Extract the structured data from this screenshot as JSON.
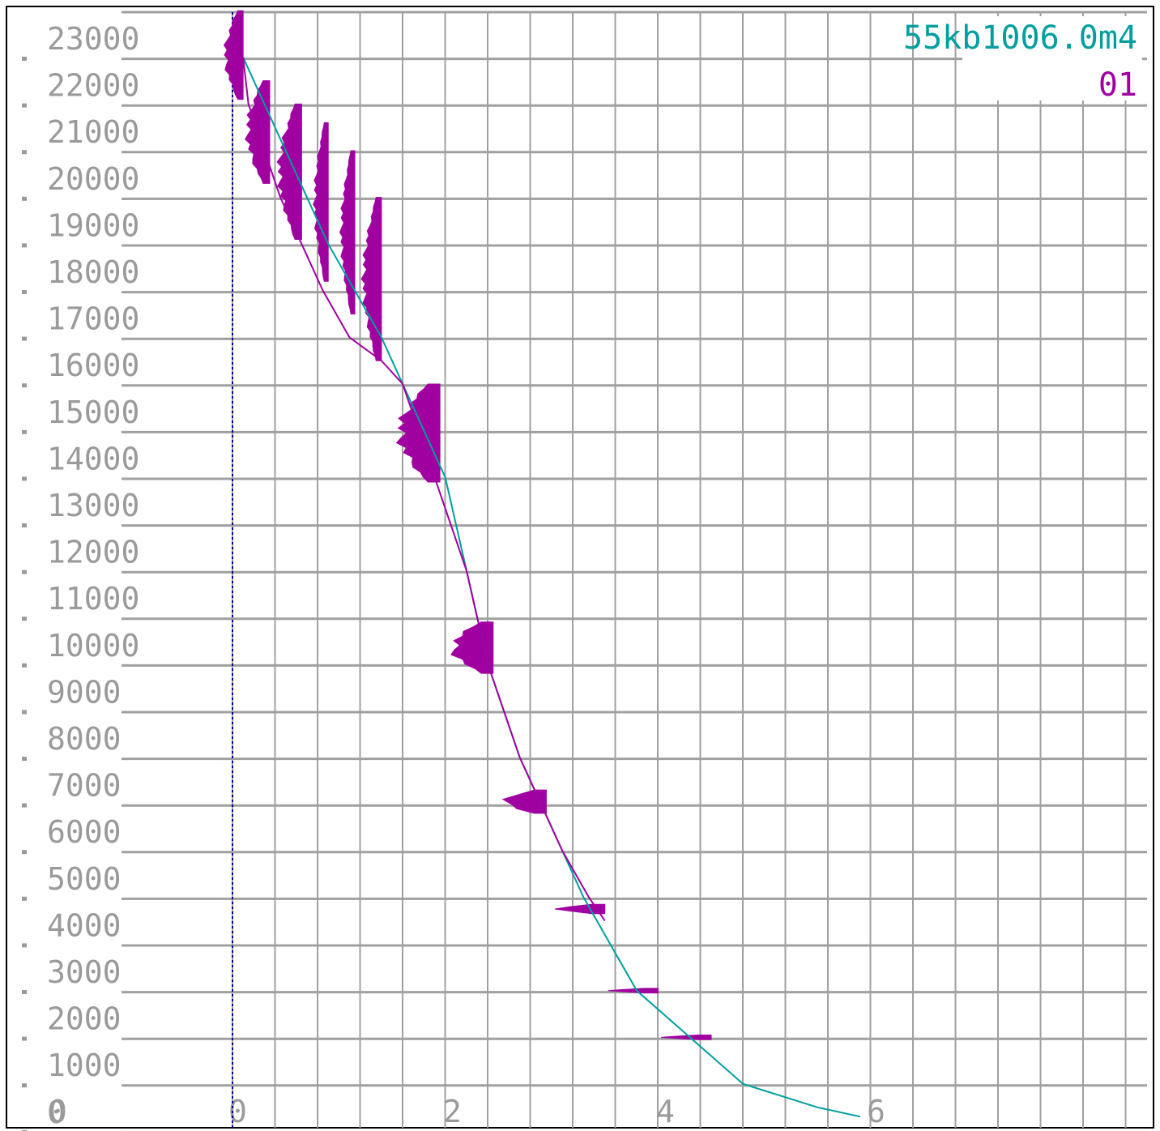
{
  "chart_data": {
    "type": "line",
    "title": "",
    "xlabel": "",
    "ylabel": "",
    "grid": true,
    "legend_position": "top-right",
    "y_ticks": [
      "23000",
      "22000",
      "21000",
      "20000",
      "19000",
      "18000",
      "17000",
      "16000",
      "15000",
      "14000",
      "13000",
      "12000",
      "11000",
      "10000",
      "9000",
      "8000",
      "7000",
      "6000",
      "5000",
      "4000",
      "3000",
      "2000",
      "1000",
      "0"
    ],
    "x_ticks": [
      "0",
      "2",
      "4",
      "6"
    ],
    "ylim": [
      0,
      23000
    ],
    "xlim": [
      0,
      8.5
    ],
    "legend": [
      {
        "label": "55kb1006.0m4",
        "color": "#009e9e"
      },
      {
        "label": "01",
        "color": "#a000a0"
      }
    ],
    "colors": {
      "grid": "#a0a0a0",
      "axis_labels": "#9a9a9a",
      "zero_line": "#00008b",
      "model": "#009e9e",
      "data": "#a000a0"
    },
    "series": [
      {
        "name": "55kb1006.0m4",
        "kind": "fit-curve",
        "points": [
          [
            0.1,
            22000
          ],
          [
            0.3,
            21000
          ],
          [
            0.5,
            20000
          ],
          [
            0.7,
            19000
          ],
          [
            0.9,
            18000
          ],
          [
            1.15,
            17000
          ],
          [
            1.4,
            16000
          ],
          [
            1.6,
            15000
          ],
          [
            1.8,
            14000
          ],
          [
            2.0,
            13000
          ],
          [
            2.1,
            12000
          ],
          [
            2.2,
            11000
          ],
          [
            2.3,
            10000
          ],
          [
            2.4,
            9000
          ],
          [
            2.55,
            8000
          ],
          [
            2.7,
            7000
          ],
          [
            2.9,
            6000
          ],
          [
            3.1,
            5000
          ],
          [
            3.3,
            4000
          ],
          [
            3.55,
            3000
          ],
          [
            3.8,
            2000
          ],
          [
            4.3,
            1000
          ],
          [
            4.8,
            0
          ],
          [
            5.5,
            -500
          ],
          [
            5.9,
            -700
          ]
        ]
      },
      {
        "name": "01",
        "kind": "sample-trace",
        "points": [
          [
            0.1,
            22000
          ],
          [
            0.15,
            21000
          ],
          [
            0.3,
            20000
          ],
          [
            0.45,
            19000
          ],
          [
            0.65,
            18000
          ],
          [
            0.85,
            17000
          ],
          [
            1.1,
            16000
          ],
          [
            1.4,
            15500
          ],
          [
            1.6,
            15000
          ],
          [
            1.75,
            14000
          ],
          [
            1.9,
            13000
          ],
          [
            2.05,
            12000
          ],
          [
            2.2,
            11000
          ],
          [
            2.3,
            10000
          ],
          [
            2.4,
            9000
          ],
          [
            2.55,
            8000
          ],
          [
            2.7,
            7000
          ],
          [
            2.9,
            6000
          ],
          [
            3.1,
            5000
          ],
          [
            3.35,
            4000
          ],
          [
            3.5,
            3500
          ]
        ]
      }
    ],
    "histograms": [
      {
        "depth_top": 23000,
        "depth_bottom": 21100,
        "x_left": -0.1,
        "x_right": 0.1
      },
      {
        "depth_top": 21500,
        "depth_bottom": 19300,
        "x_left": 0.1,
        "x_right": 0.35
      },
      {
        "depth_top": 21000,
        "depth_bottom": 18100,
        "x_left": 0.4,
        "x_right": 0.65
      },
      {
        "depth_top": 20600,
        "depth_bottom": 17200,
        "x_left": 0.75,
        "x_right": 0.9
      },
      {
        "depth_top": 20000,
        "depth_bottom": 16500,
        "x_left": 1.0,
        "x_right": 1.15
      },
      {
        "depth_top": 19000,
        "depth_bottom": 15500,
        "x_left": 1.2,
        "x_right": 1.4
      },
      {
        "depth_top": 15000,
        "depth_bottom": 12900,
        "x_left": 1.5,
        "x_right": 1.95
      },
      {
        "depth_top": 9900,
        "depth_bottom": 8800,
        "x_left": 2.0,
        "x_right": 2.45
      },
      {
        "depth_top": 6300,
        "depth_bottom": 5800,
        "x_left": 2.5,
        "x_right": 2.95
      },
      {
        "depth_top": 3850,
        "depth_bottom": 3650,
        "x_left": 3.0,
        "x_right": 3.5
      },
      {
        "depth_top": 2050,
        "depth_bottom": 1950,
        "x_left": 3.5,
        "x_right": 4.0
      },
      {
        "depth_top": 1050,
        "depth_bottom": 950,
        "x_left": 4.0,
        "x_right": 4.5
      }
    ]
  }
}
